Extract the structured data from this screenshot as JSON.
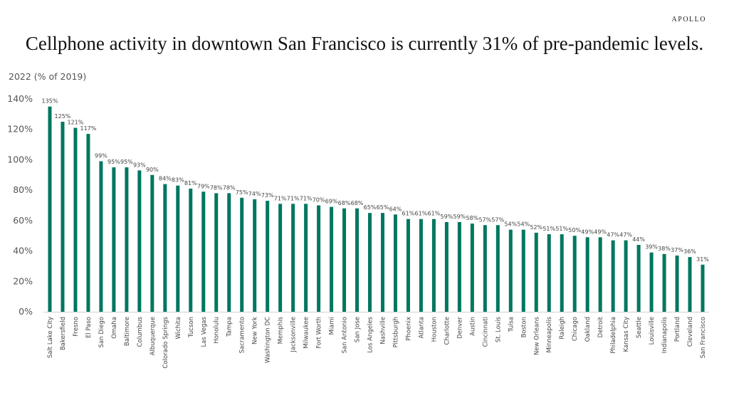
{
  "brand": "APOLLO",
  "chart_data": {
    "type": "bar",
    "title": "Cellphone activity in downtown San Francisco is currently 31% of pre-pandemic levels.",
    "ylabel": "2022 (% of 2019)",
    "xlabel": "",
    "ylim": [
      0,
      140
    ],
    "yticks": [
      "0%",
      "20%",
      "40%",
      "60%",
      "80%",
      "100%",
      "120%",
      "140%"
    ],
    "grid": false,
    "legend": "none",
    "bar_color": "#00775F",
    "categories": [
      "Salt Lake City",
      "Bakersfield",
      "Fresno",
      "El Paso",
      "San Diego",
      "Omaha",
      "Baltimore",
      "Columbus",
      "Albuquerque",
      "Colorado Springs",
      "Wichita",
      "Tucson",
      "Las Vegas",
      "Honolulu",
      "Tampa",
      "Sacramento",
      "New York",
      "Washington DC",
      "Memphis",
      "Jacksonville",
      "Milwaukee",
      "Fort Worth",
      "Miami",
      "San Antonio",
      "San Jose",
      "Los Angeles",
      "Nashville",
      "Pittsburgh",
      "Phoenix",
      "Atlanta",
      "Houston",
      "Charlotte",
      "Denver",
      "Austin",
      "Cincinnati",
      "St. Louis",
      "Tulsa",
      "Boston",
      "New Orleans",
      "Minneapolis",
      "Raleigh",
      "Chicago",
      "Oakland",
      "Detroit",
      "Philadelphia",
      "Kansas City",
      "Seattle",
      "Louisville",
      "Indianapolis",
      "Portland",
      "Cleveland",
      "San Francisco"
    ],
    "values": [
      135,
      125,
      121,
      117,
      99,
      95,
      95,
      93,
      90,
      84,
      83,
      81,
      79,
      78,
      78,
      75,
      74,
      73,
      71,
      71,
      71,
      70,
      69,
      68,
      68,
      65,
      65,
      64,
      61,
      61,
      61,
      59,
      59,
      58,
      57,
      57,
      54,
      54,
      52,
      51,
      51,
      50,
      49,
      49,
      47,
      47,
      44,
      39,
      38,
      37,
      36,
      31
    ],
    "data_labels": [
      "135%",
      "125%",
      "121%",
      "117%",
      "99%",
      "95%",
      "95%",
      "93%",
      "90%",
      "84%",
      "83%",
      "81%",
      "79%",
      "78%",
      "78%",
      "75%",
      "74%",
      "73%",
      "71%",
      "71%",
      "71%",
      "70%",
      "69%",
      "68%",
      "68%",
      "65%",
      "65%",
      "64%",
      "61%",
      "61%",
      "61%",
      "59%",
      "59%",
      "58%",
      "57%",
      "57%",
      "54%",
      "54%",
      "52%",
      "51%",
      "51%",
      "50%",
      "49%",
      "49%",
      "47%",
      "47%",
      "44%",
      "39%",
      "38%",
      "37%",
      "36%",
      "31%"
    ]
  }
}
